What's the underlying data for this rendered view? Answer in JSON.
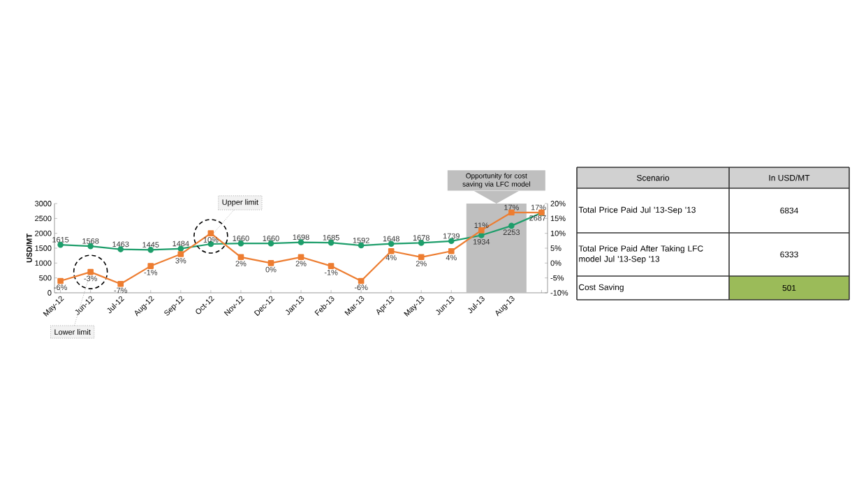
{
  "chart_data": [
    {
      "type": "line",
      "categories": [
        "May-12",
        "Jun-12",
        "Jul-12",
        "Aug-12",
        "Sep-12",
        "Oct-12",
        "Nov-12",
        "Dec-12",
        "Jan-13",
        "Feb-13",
        "Mar-13",
        "Apr-13",
        "May-13",
        "Jun-13",
        "Jul-13",
        "Aug-13",
        null
      ],
      "ylabel": "USD/MT",
      "ylim": [
        0,
        3000
      ],
      "yticks": [
        0,
        500,
        1000,
        1500,
        2000,
        2500,
        3000
      ],
      "y2lim": [
        -10,
        20
      ],
      "y2ticks": [
        {
          "value": -10,
          "label": "-10%"
        },
        {
          "value": -5,
          "label": "-5%"
        },
        {
          "value": 0,
          "label": "0%"
        },
        {
          "value": 5,
          "label": "5%"
        },
        {
          "value": 10,
          "label": "10%"
        },
        {
          "value": 15,
          "label": "15%"
        },
        {
          "value": 20,
          "label": "20%"
        }
      ],
      "series": [
        {
          "color": "#1e9e6b",
          "marker": "circle",
          "values": [
            1615,
            1568,
            1463,
            1445,
            1484,
            1640,
            1660,
            1660,
            1698,
            1685,
            1592,
            1648,
            1678,
            1739,
            1934,
            2253,
            2687
          ],
          "value_labels": [
            "1615",
            "1568",
            "1463",
            "1445",
            "1484",
            null,
            "1660",
            "1660",
            "1698",
            "1685",
            "1592",
            "1648",
            "1678",
            "1739",
            "1934",
            "2253",
            "2687"
          ]
        },
        {
          "axis": "y2",
          "color": "#ed7d31",
          "marker": "square",
          "values": [
            -6,
            -3,
            -7,
            -1,
            3,
            10,
            2,
            0,
            2,
            -1,
            -6,
            4,
            2,
            4,
            11,
            17,
            17
          ],
          "value_labels": [
            "-6%",
            "-3%",
            "-7%",
            "-1%",
            "3%",
            "10%",
            "2%",
            "0%",
            "2%",
            "-1%",
            "-6%",
            "4%",
            "2%",
            "4%",
            "11%",
            "17%",
            "17%"
          ]
        }
      ],
      "bands": [
        {
          "axis": "x",
          "from": "Jul-13",
          "to": "Aug-13",
          "label": "Opportunity for cost saving via LFC model",
          "color": "#bfbfbf"
        }
      ],
      "annotations": [
        {
          "text": "Upper limit",
          "x": "Oct-12",
          "y": 1900
        },
        {
          "text": "Lower limit",
          "x": "Jun-12",
          "y": 700
        }
      ],
      "grid": false
    },
    {
      "type": "other",
      "xlabel": "Scenario",
      "ylabel": "In USD/MT",
      "categories": [
        "Total Price Paid Jul '13-Sep '13",
        "Total Price Paid After Taking LFC model Jul '13-Sep '13",
        "Cost Saving"
      ],
      "values": [
        6834,
        6333,
        501
      ],
      "data_labels": true,
      "colors": [
        "#ffffff",
        "#ffffff",
        "#9bbb59"
      ]
    }
  ]
}
